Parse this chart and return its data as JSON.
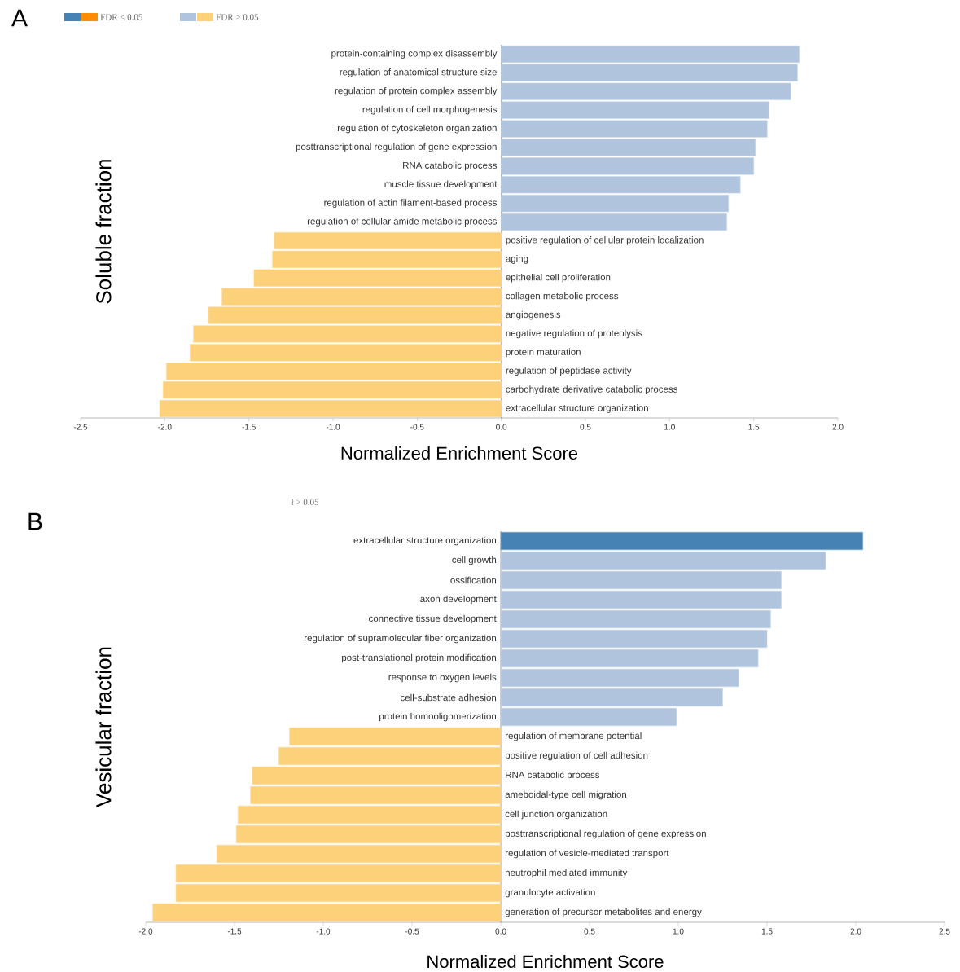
{
  "chart_data": [
    {
      "type": "bar",
      "orientation": "horizontal",
      "title": "A",
      "ylabel": "Soluble fraction",
      "xlabel": "Normalized Enrichment Score",
      "categories": [
        "protein-containing complex disassembly",
        "regulation of anatomical structure size",
        "regulation of protein complex assembly",
        "regulation of cell morphogenesis",
        "regulation of cytoskeleton organization",
        "posttranscriptional regulation of gene expression",
        "RNA catabolic process",
        "muscle tissue development",
        "regulation of actin filament-based process",
        "regulation of cellular amide metabolic process",
        "positive regulation of cellular protein localization",
        "aging",
        "epithelial cell proliferation",
        "collagen metabolic process",
        "angiogenesis",
        "negative regulation of proteolysis",
        "protein maturation",
        "regulation of peptidase activity",
        "carbohydrate derivative catabolic process",
        "extracellular structure organization"
      ],
      "series": [
        {
          "name": "FDR ≤ 0.05",
          "color": "#4682b4",
          "values": [
            null,
            null,
            null,
            null,
            null,
            null,
            null,
            null,
            null,
            null,
            null,
            null,
            null,
            null,
            null,
            null,
            null,
            null,
            null,
            null
          ]
        },
        {
          "color": "#ff8c00",
          "values": [
            null,
            null,
            null,
            null,
            null,
            null,
            null,
            null,
            null,
            null,
            null,
            null,
            null,
            null,
            null,
            null,
            null,
            null,
            null,
            null
          ]
        },
        {
          "name": "FDR > 0.05",
          "color": "#b0c4de",
          "values": [
            1.77,
            1.76,
            1.72,
            1.59,
            1.58,
            1.51,
            1.5,
            1.42,
            1.35,
            1.34,
            null,
            null,
            null,
            null,
            null,
            null,
            null,
            null,
            null,
            null
          ]
        },
        {
          "color": "#fdd07a",
          "values": [
            null,
            null,
            null,
            null,
            null,
            null,
            null,
            null,
            null,
            null,
            -1.35,
            -1.36,
            -1.47,
            -1.66,
            -1.74,
            -1.83,
            -1.85,
            -1.99,
            -2.01,
            -2.03
          ]
        }
      ],
      "xlim": [
        -2.5,
        2.0
      ],
      "xticks": [
        -2.5,
        {
          "value": -2,
          "label": "-2.0"
        },
        -1.5,
        {
          "value": -1,
          "label": "-1.0"
        },
        -0.5,
        {
          "value": 0,
          "label": "0.0"
        },
        0.5,
        {
          "value": 1,
          "label": "1.0"
        },
        1.5,
        {
          "value": 2,
          "label": "2.0"
        }
      ],
      "legend": "top left"
    },
    {
      "type": "bar",
      "orientation": "horizontal",
      "title": "B",
      "ylabel": "Vesicular fraction",
      "xlabel": "Normalized Enrichment Score",
      "annotations": [
        "ł > 0.05"
      ],
      "categories": [
        "extracellular structure organization",
        "cell growth",
        "ossification",
        "axon development",
        "connective tissue development",
        "regulation of supramolecular fiber organization",
        "post-translational protein modification",
        "response to oxygen levels",
        "cell-substrate adhesion",
        "protein homooligomerization",
        "regulation of membrane potential",
        "positive regulation of cell adhesion",
        "RNA catabolic process",
        "ameboidal-type cell migration",
        "cell junction organization",
        "posttranscriptional regulation of gene expression",
        "regulation of vesicle-mediated transport",
        "neutrophil mediated immunity",
        "granulocyte activation",
        "generation of precursor metabolites and energy"
      ],
      "series": [
        {
          "color": "#4682b4",
          "values": [
            2.04,
            null,
            null,
            null,
            null,
            null,
            null,
            null,
            null,
            null,
            null,
            null,
            null,
            null,
            null,
            null,
            null,
            null,
            null,
            null
          ]
        },
        {
          "color": "#b0c4de",
          "values": [
            null,
            1.83,
            1.58,
            1.58,
            1.52,
            1.5,
            1.45,
            1.34,
            1.25,
            0.99,
            null,
            null,
            null,
            null,
            null,
            null,
            null,
            null,
            null,
            null
          ]
        },
        {
          "color": "#fdd07a",
          "values": [
            null,
            null,
            null,
            null,
            null,
            null,
            null,
            null,
            null,
            null,
            -1.19,
            -1.25,
            -1.4,
            -1.41,
            -1.48,
            -1.49,
            -1.6,
            -1.83,
            -1.83,
            -1.96
          ]
        }
      ],
      "xlim": [
        -2.0,
        2.5
      ],
      "xticks": [
        {
          "value": -2,
          "label": "-2.0"
        },
        -1.5,
        {
          "value": -1,
          "label": "-1.0"
        },
        -0.5,
        {
          "value": 0,
          "label": "0.0"
        },
        0.5,
        {
          "value": 1,
          "label": "1.0"
        },
        1.5,
        {
          "value": 2,
          "label": "2.0"
        },
        2.5
      ]
    }
  ]
}
